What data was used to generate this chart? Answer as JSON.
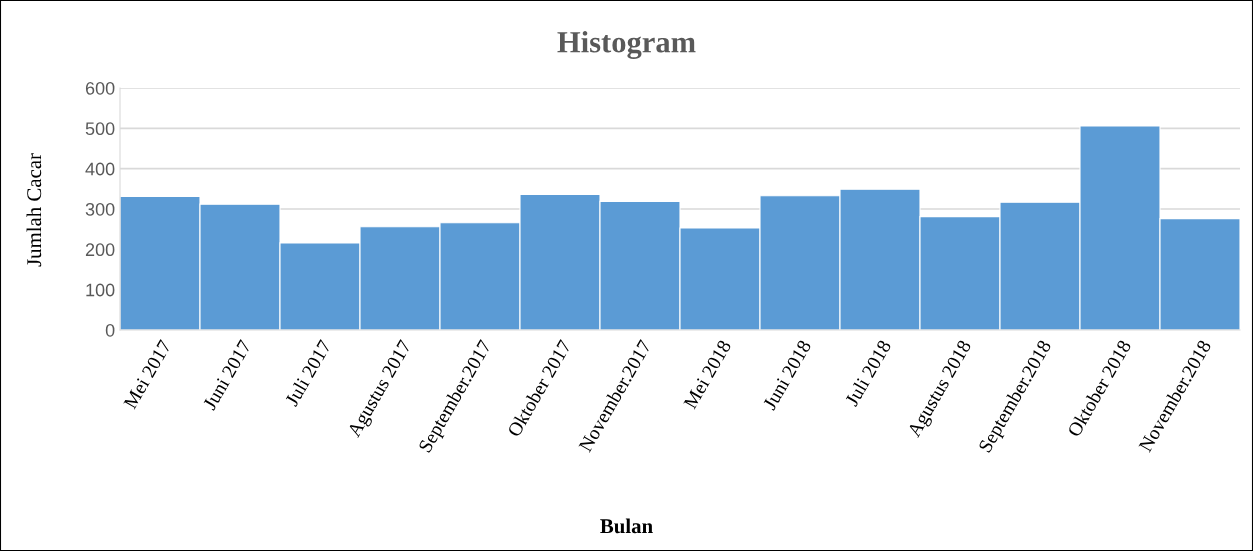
{
  "chart_data": {
    "type": "bar",
    "title": "Histogram",
    "xlabel": "Bulan",
    "ylabel": "Jumlah Cacar",
    "categories": [
      "Mei 2017",
      "Juni 2017",
      "Juli 2017",
      "Agustus 2017",
      "September.2017",
      "Oktober 2017",
      "November.2017",
      "Mei 2018",
      "Juni 2018",
      "Juli 2018",
      "Agustus 2018",
      "September.2018",
      "Oktober 2018",
      "November.2018"
    ],
    "values": [
      331,
      312,
      216,
      256,
      266,
      336,
      319,
      253,
      333,
      349,
      281,
      317,
      506,
      276
    ],
    "color": "#5b9bd5",
    "ylim": [
      0,
      600
    ],
    "yticks": [
      0,
      100,
      200,
      300,
      400,
      500,
      600
    ],
    "grid": "y"
  }
}
